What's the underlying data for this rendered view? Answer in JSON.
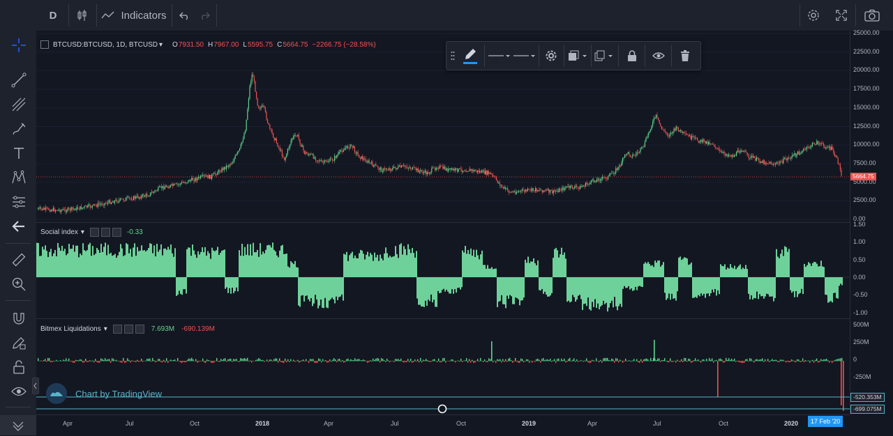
{
  "toolbar": {
    "interval": "D",
    "indicators_label": "Indicators"
  },
  "symbol": {
    "title": "BTCUSD:BTCUSD, 1D, BTCUSD",
    "o_label": "O",
    "o_value": "7931.50",
    "h_label": "H",
    "h_value": "7967.00",
    "l_label": "L",
    "l_value": "5595.75",
    "c_label": "C",
    "c_value": "5664.75",
    "change": "−2266.75 (−28.58%)",
    "last_price": "5664.75"
  },
  "price_axis": [
    "25000.00",
    "22500.00",
    "20000.00",
    "17500.00",
    "15000.00",
    "12500.00",
    "10000.00",
    "7500.00",
    "5000.00",
    "2500.00",
    "0.00"
  ],
  "social": {
    "name": "Social index",
    "value": "-0.33",
    "axis": [
      "1.50",
      "1.00",
      "0.50",
      "0.00",
      "-0.50",
      "-1.00"
    ]
  },
  "liquidations": {
    "name": "Bitmex Liquidations",
    "value1": "7.693M",
    "value2": "-690.139M",
    "axis": [
      "500M",
      "250M",
      "0",
      "-250M"
    ],
    "level1": "-520.353M",
    "level2": "-699.075M"
  },
  "time_axis": [
    "Apr",
    "Jul",
    "Oct",
    "2018",
    "Apr",
    "Jul",
    "Oct",
    "2019",
    "Apr",
    "Jul",
    "Oct",
    "2020"
  ],
  "crosshair_date": "17 Feb '20",
  "watermark": "Chart by TradingView",
  "colors": {
    "up": "#5fd68c",
    "down": "#ef5350",
    "social": "#6fd19a",
    "accent": "#2962ff"
  }
}
